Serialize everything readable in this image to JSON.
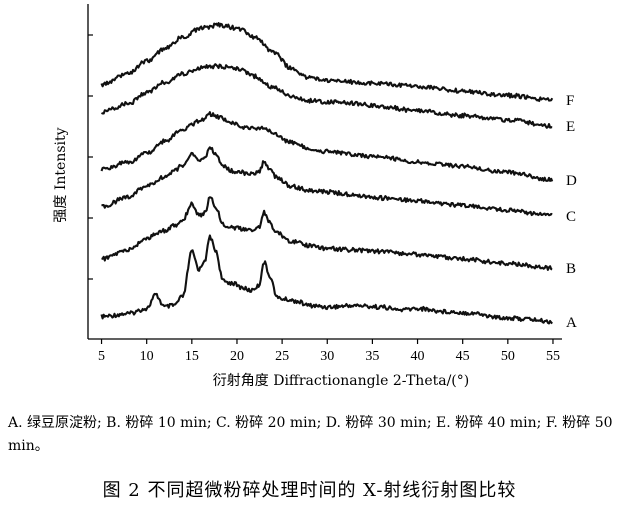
{
  "chart_data": {
    "type": "line",
    "xlabel": "衍射角度 Diffractionangle 2-Theta/(°)",
    "ylabel": "强度 Intensity",
    "xlim": [
      3.5,
      56
    ],
    "x_ticks": [
      5,
      10,
      15,
      20,
      25,
      30,
      35,
      40,
      45,
      50,
      55
    ],
    "y_ticks_count": 5,
    "y_tick_labels": "none",
    "stacked_offset": true,
    "grid": false,
    "legend": "series letters at right end of each curve",
    "line_color": "#111111",
    "series": [
      {
        "name": "A",
        "x": [
          5,
          8,
          10,
          11,
          12,
          13,
          14,
          15,
          15.8,
          16.5,
          17,
          17.6,
          18.5,
          19.5,
          20.5,
          21.5,
          22.4,
          23,
          23.6,
          24.5,
          25.5,
          26.5,
          28,
          30,
          33,
          36,
          38,
          40,
          43,
          46,
          49,
          52,
          55
        ],
        "y": [
          0.18,
          0.28,
          0.45,
          0.9,
          0.5,
          0.55,
          0.85,
          2.35,
          1.75,
          2.1,
          2.85,
          2.4,
          1.35,
          1.3,
          1.15,
          1.05,
          1.2,
          2.0,
          1.55,
          0.8,
          0.75,
          0.7,
          0.55,
          0.5,
          0.55,
          0.5,
          0.4,
          0.45,
          0.35,
          0.3,
          0.15,
          0.1,
          0.0
        ]
      },
      {
        "name": "B",
        "x": [
          5,
          8,
          10,
          12,
          13,
          14,
          15,
          15.8,
          16.5,
          17,
          17.6,
          18.5,
          19.5,
          20.5,
          21.5,
          22.4,
          23,
          23.6,
          24.5,
          26,
          28,
          30,
          33,
          36,
          40,
          45,
          50,
          55
        ],
        "y": [
          0.3,
          0.6,
          1.0,
          1.25,
          1.4,
          1.6,
          2.15,
          1.75,
          1.85,
          2.4,
          2.05,
          1.45,
          1.35,
          1.3,
          1.25,
          1.35,
          1.85,
          1.5,
          1.15,
          0.9,
          0.75,
          0.65,
          0.6,
          0.55,
          0.45,
          0.3,
          0.15,
          0.0
        ]
      },
      {
        "name": "C",
        "x": [
          5,
          8,
          10,
          12,
          13,
          14,
          15,
          15.8,
          16.5,
          17,
          17.6,
          18.5,
          19.5,
          20.5,
          21.5,
          22.4,
          23,
          23.6,
          24.5,
          26,
          28,
          30,
          33,
          36,
          40,
          45,
          50,
          55
        ],
        "y": [
          0.3,
          0.65,
          1.0,
          1.3,
          1.5,
          1.7,
          2.05,
          1.85,
          1.95,
          2.3,
          2.05,
          1.65,
          1.5,
          1.45,
          1.4,
          1.45,
          1.8,
          1.55,
          1.25,
          1.0,
          0.85,
          0.8,
          0.7,
          0.6,
          0.5,
          0.35,
          0.2,
          0.0
        ]
      },
      {
        "name": "D",
        "x": [
          5,
          8,
          10,
          12,
          14,
          15,
          16,
          17,
          18,
          19,
          20,
          21,
          22,
          23,
          24,
          26,
          28,
          30,
          33,
          36,
          40,
          45,
          50,
          55
        ],
        "y": [
          0.35,
          0.6,
          0.9,
          1.3,
          1.7,
          1.85,
          2.0,
          2.2,
          2.1,
          1.95,
          1.85,
          1.75,
          1.7,
          1.75,
          1.55,
          1.25,
          1.05,
          0.95,
          0.85,
          0.75,
          0.6,
          0.45,
          0.25,
          0.0
        ]
      },
      {
        "name": "E",
        "x": [
          5,
          8,
          10,
          12,
          14,
          16,
          18,
          20,
          22,
          24,
          26,
          28,
          30,
          33,
          36,
          40,
          45,
          50,
          55
        ],
        "y": [
          0.45,
          0.75,
          1.1,
          1.45,
          1.75,
          1.95,
          2.0,
          1.9,
          1.65,
          1.3,
          1.0,
          0.85,
          0.8,
          0.75,
          0.65,
          0.5,
          0.35,
          0.2,
          0.0
        ]
      },
      {
        "name": "F",
        "x": [
          5,
          8,
          10,
          12,
          14,
          16,
          18,
          20,
          22,
          24,
          26,
          28,
          30,
          33,
          36,
          40,
          45,
          50,
          55
        ],
        "y": [
          0.5,
          0.9,
          1.3,
          1.7,
          2.1,
          2.4,
          2.5,
          2.4,
          2.1,
          1.6,
          1.05,
          0.75,
          0.65,
          0.6,
          0.55,
          0.45,
          0.3,
          0.15,
          0.0
        ]
      }
    ]
  },
  "legend_note": "A. 绿豆原淀粉; B. 粉碎 10 min; C. 粉碎 20 min; D. 粉碎 30 min; E. 粉碎 40 min; F. 粉碎 50 min。",
  "figure_caption": "图 2   不同超微粉碎处理时间的 X-射线衍射图比较"
}
